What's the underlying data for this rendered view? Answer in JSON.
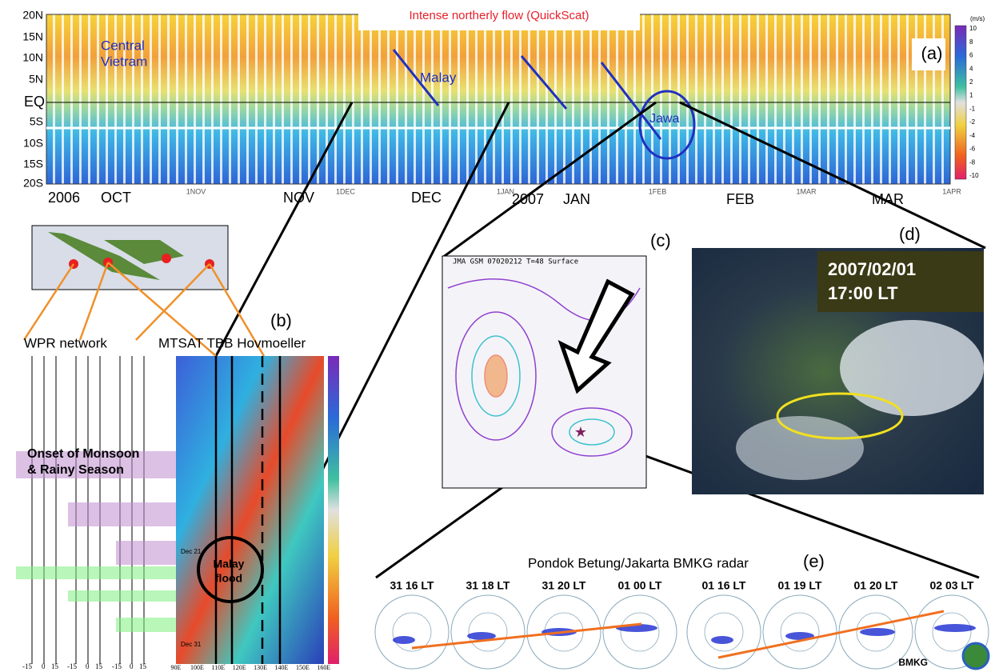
{
  "panel_a": {
    "title": "Intense northerly flow (QuickScat)",
    "label": "(a)",
    "unit": "(m/s)",
    "lat_labels": [
      "20N",
      "15N",
      "10N",
      "5N",
      "EQ",
      "5S",
      "10S",
      "15S",
      "20S"
    ],
    "annotations": [
      "Central",
      "Vietram",
      "Malay",
      "Jawa"
    ],
    "months": [
      "2006",
      "OCT",
      "NOV",
      "DEC",
      "2007",
      "JAN",
      "FEB",
      "MAR"
    ],
    "date_ticks": [
      "1NOV",
      "1DEC",
      "1JAN",
      "1FEB",
      "1MAR",
      "1APR"
    ],
    "colorbar": [
      "10",
      "8",
      "6",
      "4",
      "2",
      "1",
      "-1",
      "-2",
      "-4",
      "-6",
      "-8",
      "-10"
    ]
  },
  "panel_b": {
    "label": "(b)",
    "wpr": "WPR network",
    "hov": "MTSAT TBB Hovmoeller",
    "onset": [
      "Onset of Monsoon",
      "& Rainy Season"
    ],
    "flood": [
      "Malay",
      "flood"
    ],
    "dates": [
      "Dec 21",
      "Dec 31"
    ],
    "wpr_ticks": [
      "-15",
      "0",
      "15"
    ],
    "lon_ticks": [
      "90E",
      "100E",
      "110E",
      "120E",
      "130E",
      "140E",
      "150E",
      "160E"
    ]
  },
  "panel_c": {
    "label": "(c)",
    "title": "JMA GSM 07020212 T=48 Surface"
  },
  "panel_d": {
    "label": "(d)",
    "date": "2007/02/01",
    "time": "17:00 LT"
  },
  "panel_e": {
    "title": "Pondok Betung/Jakarta BMKG radar",
    "label": "(e)",
    "times": [
      "31 16 LT",
      "31 18 LT",
      "31 20 LT",
      "01 00 LT",
      "01 16 LT",
      "01 19 LT",
      "01 20 LT",
      "02 03 LT"
    ],
    "logo": "BMKG"
  }
}
